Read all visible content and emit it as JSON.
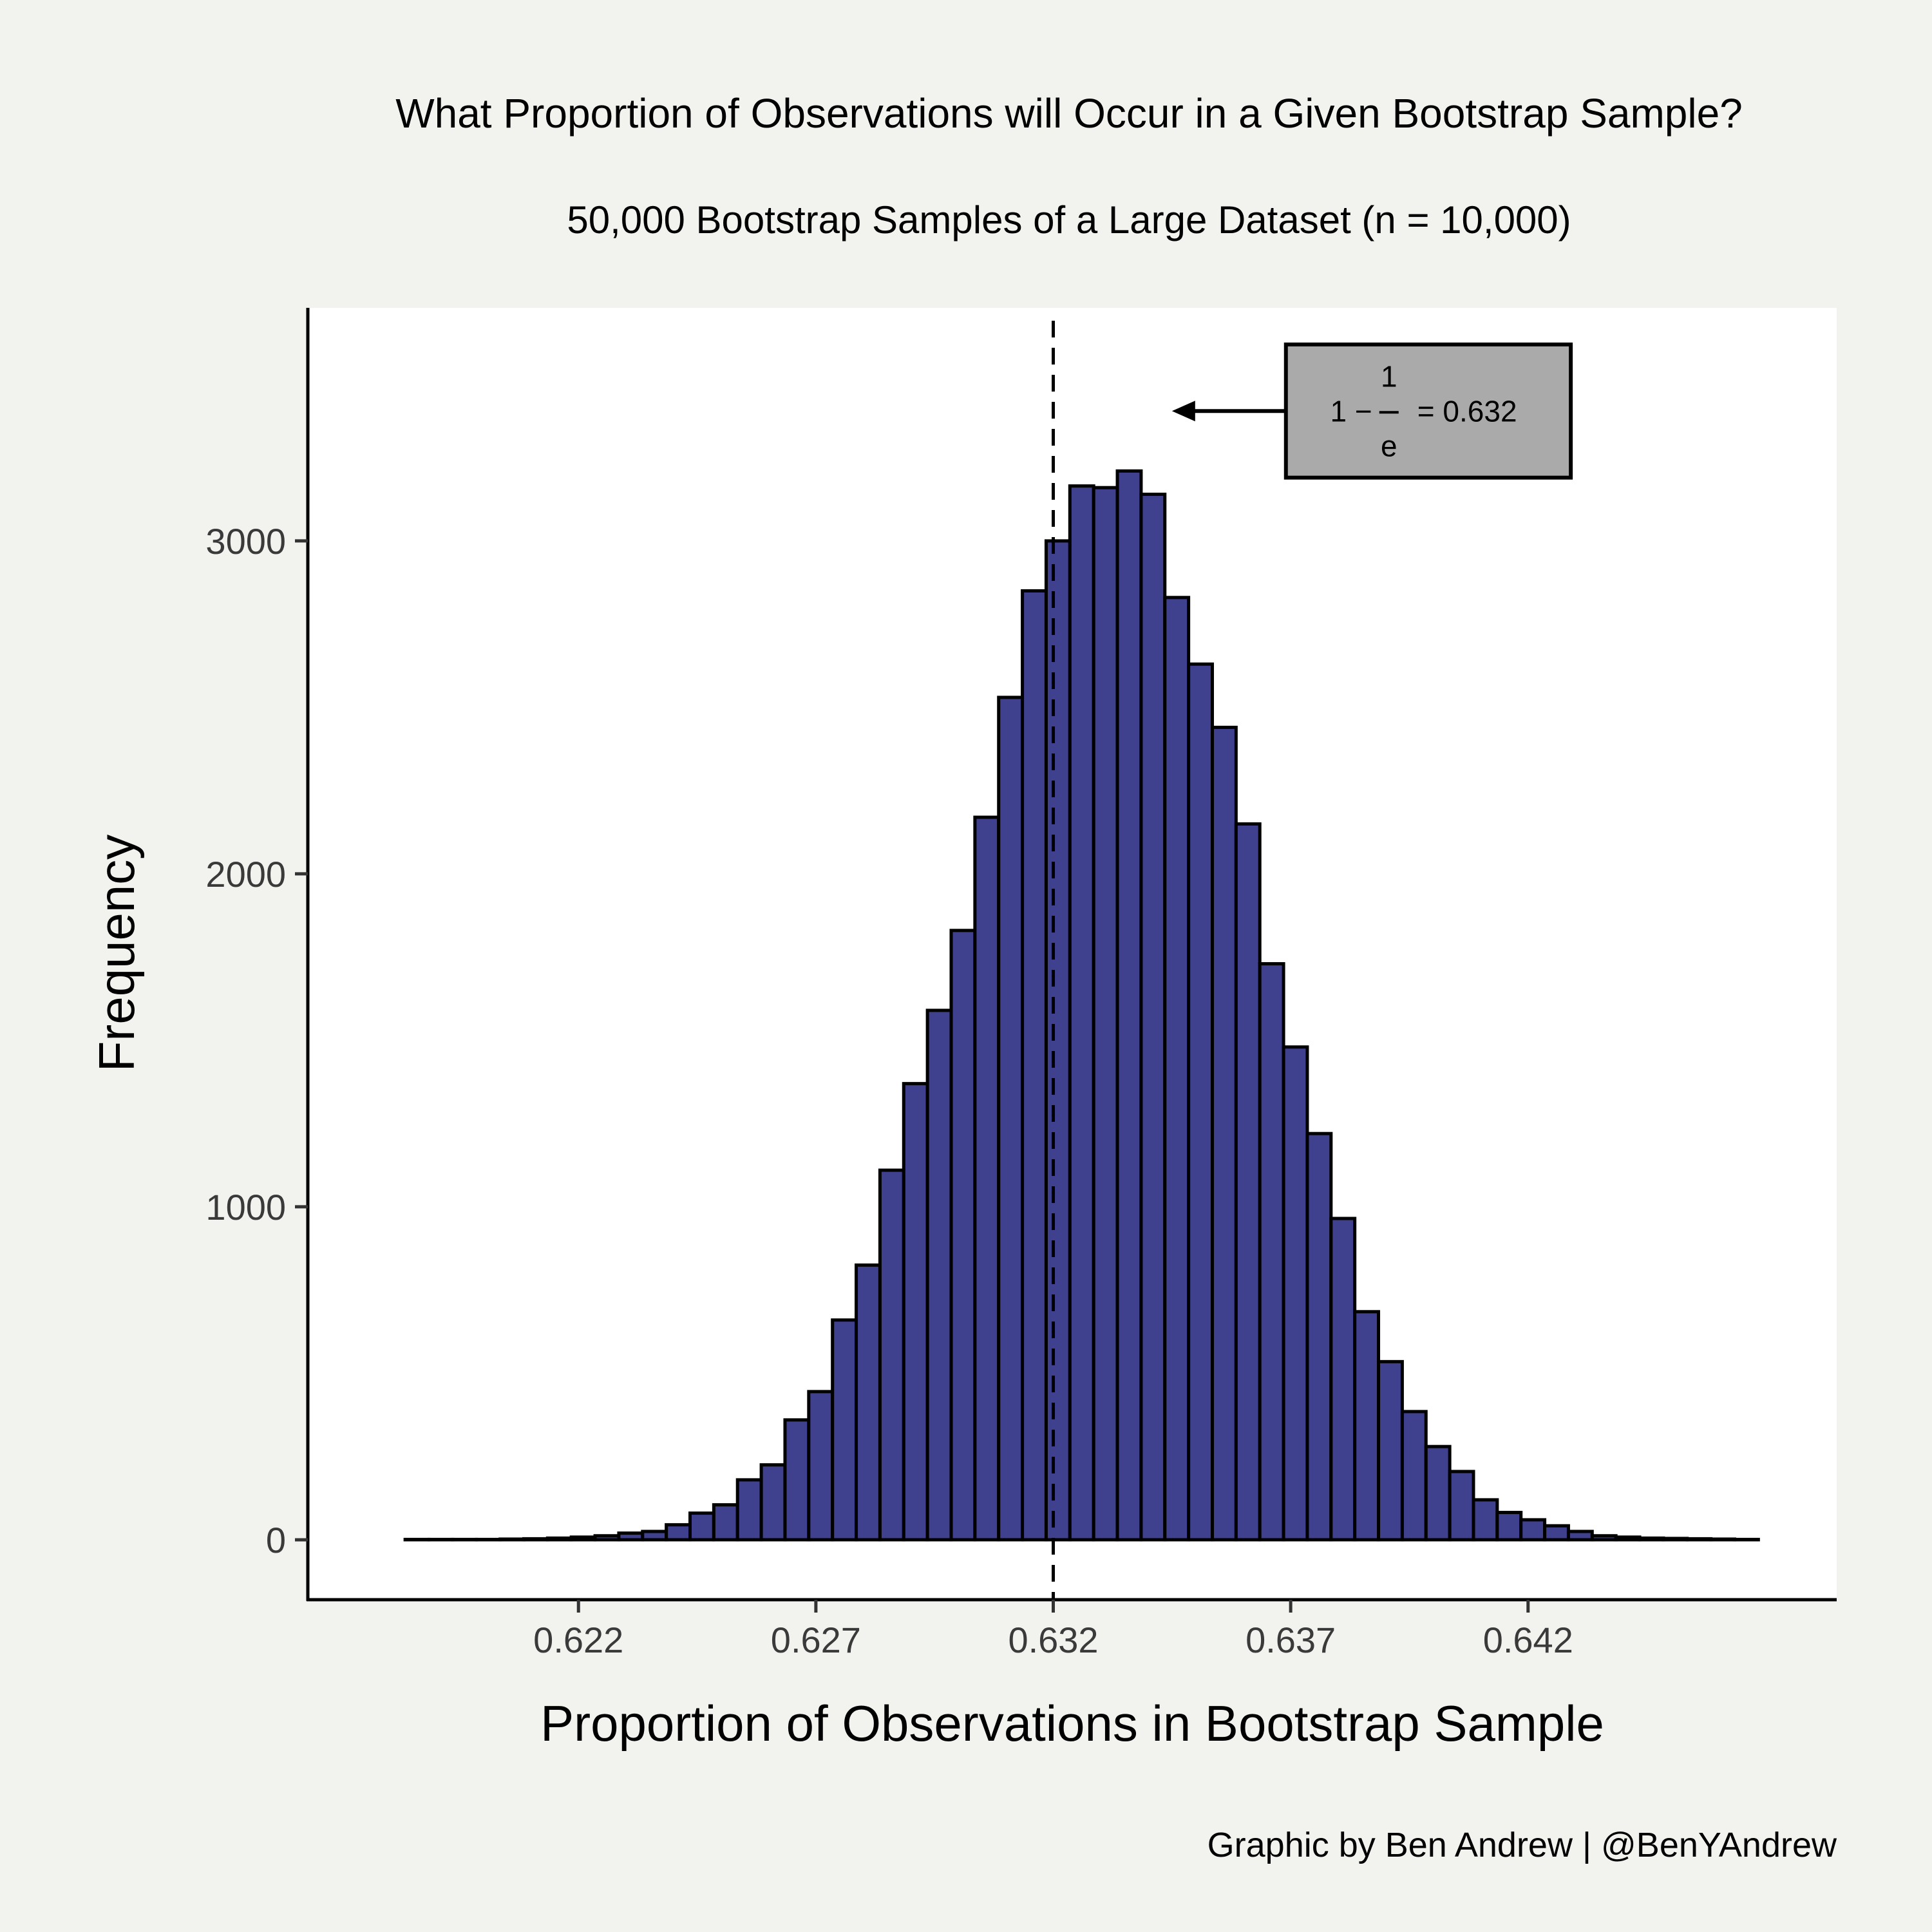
{
  "chart_data": {
    "type": "bar",
    "title": "What Proportion of Observations will Occur in a Given Bootstrap Sample?",
    "subtitle": "50,000 Bootstrap Samples of a Large Dataset (n = 10,000)",
    "xlabel": "Proportion of Observations in Bootstrap Sample",
    "ylabel": "Frequency",
    "caption": "Graphic by Ben Andrew | @BenYAndrew",
    "xlim": [
      0.6163,
      0.6485
    ],
    "ylim": [
      -180,
      3700
    ],
    "xticks": [
      0.622,
      0.627,
      0.632,
      0.637,
      0.642
    ],
    "xtick_labels": [
      "0.622",
      "0.627",
      "0.632",
      "0.637",
      "0.642"
    ],
    "yticks": [
      0,
      1000,
      2000,
      3000
    ],
    "ytick_labels": [
      "0",
      "1000",
      "2000",
      "3000"
    ],
    "bin_width": 0.0005,
    "bins_x": [
      0.6186,
      0.6191,
      0.6196,
      0.6201,
      0.6206,
      0.6211,
      0.6216,
      0.6221,
      0.6226,
      0.6231,
      0.6236,
      0.6241,
      0.6246,
      0.6251,
      0.6256,
      0.6261,
      0.6266,
      0.6271,
      0.6276,
      0.6281,
      0.6286,
      0.6291,
      0.6296,
      0.6301,
      0.6306,
      0.6311,
      0.6316,
      0.6321,
      0.6326,
      0.6331,
      0.6336,
      0.6341,
      0.6346,
      0.6351,
      0.6356,
      0.6361,
      0.6366,
      0.6371,
      0.6376,
      0.6381,
      0.6386,
      0.6391,
      0.6396,
      0.6401,
      0.6406,
      0.6411,
      0.6416,
      0.6421,
      0.6426,
      0.6431,
      0.6436,
      0.6441,
      0.6446,
      0.6451,
      0.6456,
      0.6461,
      0.6466
    ],
    "values": [
      1,
      1,
      1,
      1,
      2,
      3,
      5,
      8,
      12,
      20,
      25,
      45,
      80,
      105,
      180,
      225,
      360,
      445,
      660,
      825,
      1110,
      1370,
      1590,
      1830,
      2170,
      2530,
      2850,
      3000,
      3165,
      3160,
      3210,
      3140,
      2830,
      2630,
      2440,
      2150,
      1730,
      1480,
      1220,
      965,
      685,
      535,
      385,
      280,
      205,
      120,
      82,
      60,
      42,
      25,
      12,
      8,
      5,
      4,
      3,
      2,
      1
    ],
    "grid": false,
    "colors": {
      "bar_fill": "#3f408e",
      "bar_stroke": "#000000",
      "panel_background": "#ffffff",
      "page_background": "#f2f2ee",
      "annotation_box": "#aaaaaa"
    },
    "reference_line": {
      "x": 0.632,
      "style": "dashed"
    },
    "annotation": {
      "text_prefix": "1 −",
      "numerator": "1",
      "denominator": "e",
      "text_suffix": "= 0.632",
      "anchor_x": 0.6345,
      "anchor_y": 3390,
      "box_x": [
        0.6369,
        0.6429
      ],
      "box_y": [
        3190,
        3590
      ]
    }
  }
}
